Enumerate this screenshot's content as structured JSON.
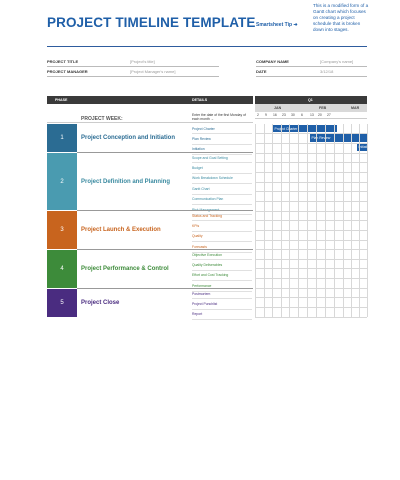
{
  "header": {
    "title": "PROJECT TIMELINE TEMPLATE",
    "tip_label": "Smartsheet Tip ➜",
    "tip_text": "This is a modified form of a Gantt chart which focuses on creating a project schedule that is broken down into stages."
  },
  "meta": {
    "project_title_label": "PROJECT TITLE",
    "project_title_value": "[Project's title]",
    "project_manager_label": "PROJECT MANAGER",
    "project_manager_value": "[Project Manager's name]",
    "company_name_label": "COMPANY NAME",
    "company_name_value": "[Company's name]",
    "date_label": "DATE",
    "date_value": "3/12/18"
  },
  "table": {
    "phase_header": "PHASE",
    "details_header": "DETAILS",
    "week_label": "PROJECT WEEK:",
    "week_note": "Enter the date of the first Monday of each month →",
    "quarter": "Q1",
    "months": [
      "JAN",
      "FEB",
      "MAR"
    ],
    "days": [
      "2",
      "9",
      "16",
      "23",
      "30",
      "6",
      "13",
      "20",
      "27"
    ]
  },
  "phases": [
    {
      "number": "1",
      "name": "Project Conception and Initiation",
      "color": "#2b6c93",
      "details": [
        "Project Charter",
        "Plan Review",
        "Initiation"
      ]
    },
    {
      "number": "2",
      "name": "Project Definition and Planning",
      "color": "#4a9bb0",
      "details": [
        "Scope and Goal Setting",
        "Budget",
        "Work Breakdown Schedule",
        "Gantt Chart",
        "Communication Plan",
        "Risk Management"
      ]
    },
    {
      "number": "3",
      "name": "Project Launch & Execution",
      "color": "#c8641e",
      "details": [
        "Status and Tracking",
        "KPIs",
        "Quality",
        "Forecasts"
      ]
    },
    {
      "number": "4",
      "name": "Project Performance & Control",
      "color": "#3d8b3a",
      "details": [
        "Objective Execution",
        "Quality Deliverables",
        "Effort and Cost Tracking",
        "Performance"
      ]
    },
    {
      "number": "5",
      "name": "Project Close",
      "color": "#4a2c80",
      "details": [
        "Postmortem",
        "Project Punchlist",
        "Report"
      ]
    }
  ],
  "gantt_bars": [
    {
      "label": "Project Charter"
    },
    {
      "label": "Plan Review"
    },
    {
      "label": "Initiation"
    }
  ]
}
